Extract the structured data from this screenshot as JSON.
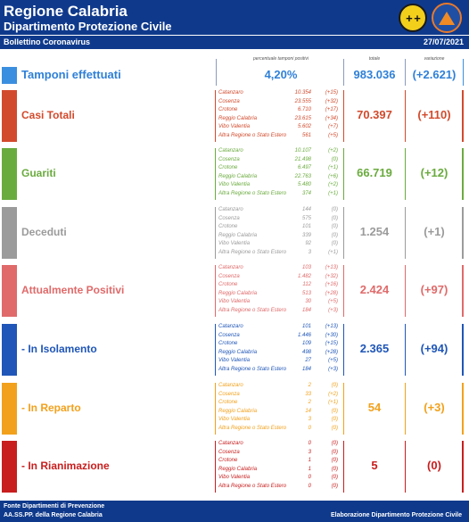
{
  "header": {
    "title": "Regione Calabria",
    "subtitle": "Dipartimento Protezione Civile",
    "logo1_text": "+ +"
  },
  "bulletin": {
    "label": "Bollettino Coronavirus",
    "date": "27/07/2021"
  },
  "columns": {
    "pct_label": "percentuale tamponi positivi",
    "total_label": "totale",
    "variation_label": "variazione"
  },
  "tamponi": {
    "label": "Tamponi effettuati",
    "pct": "4,20%",
    "total": "983.036",
    "variation": "(+2.621)",
    "color": "#2f80d8"
  },
  "sections": [
    {
      "label": "Casi Totali",
      "color": "#d24a2c",
      "total": "70.397",
      "variation": "(+110)",
      "provinces": [
        {
          "name": "Catanzaro",
          "value": "10.354",
          "delta": "(+15)"
        },
        {
          "name": "Cosenza",
          "value": "23.555",
          "delta": "(+32)"
        },
        {
          "name": "Crotone",
          "value": "6.710",
          "delta": "(+17)"
        },
        {
          "name": "Reggio Calabria",
          "value": "23.615",
          "delta": "(+34)"
        },
        {
          "name": "Vibo Valentia",
          "value": "5.602",
          "delta": "(+7)"
        },
        {
          "name": "Altra Regione o Stato Estero",
          "value": "561",
          "delta": "(+5)"
        }
      ]
    },
    {
      "label": "Guariti",
      "color": "#6aab3e",
      "total": "66.719",
      "variation": "(+12)",
      "provinces": [
        {
          "name": "Catanzaro",
          "value": "10.107",
          "delta": "(+2)"
        },
        {
          "name": "Cosenza",
          "value": "21.498",
          "delta": "(0)"
        },
        {
          "name": "Crotone",
          "value": "6.497",
          "delta": "(+1)"
        },
        {
          "name": "Reggio Calabria",
          "value": "22.763",
          "delta": "(+6)"
        },
        {
          "name": "Vibo Valentia",
          "value": "5.480",
          "delta": "(+2)"
        },
        {
          "name": "Altra Regione o Stato Estero",
          "value": "374",
          "delta": "(+1)"
        }
      ]
    },
    {
      "label": "Deceduti",
      "color": "#9b9b9b",
      "total": "1.254",
      "variation": "(+1)",
      "provinces": [
        {
          "name": "Catanzaro",
          "value": "144",
          "delta": "(0)"
        },
        {
          "name": "Cosenza",
          "value": "575",
          "delta": "(0)"
        },
        {
          "name": "Crotone",
          "value": "101",
          "delta": "(0)"
        },
        {
          "name": "Reggio Calabria",
          "value": "339",
          "delta": "(0)"
        },
        {
          "name": "Vibo Valentia",
          "value": "92",
          "delta": "(0)"
        },
        {
          "name": "Altra Regione o Stato Estero",
          "value": "3",
          "delta": "(+1)"
        }
      ]
    },
    {
      "label": "Attualmente Positivi",
      "color": "#e06a6a",
      "total": "2.424",
      "variation": "(+97)",
      "provinces": [
        {
          "name": "Catanzaro",
          "value": "103",
          "delta": "(+13)"
        },
        {
          "name": "Cosenza",
          "value": "1.482",
          "delta": "(+32)"
        },
        {
          "name": "Crotone",
          "value": "112",
          "delta": "(+16)"
        },
        {
          "name": "Reggio Calabria",
          "value": "513",
          "delta": "(+28)"
        },
        {
          "name": "Vibo Valentia",
          "value": "30",
          "delta": "(+5)"
        },
        {
          "name": "Altra Regione o Stato Estero",
          "value": "184",
          "delta": "(+3)"
        }
      ]
    },
    {
      "label": "- In Isolamento",
      "color": "#1f56b8",
      "total": "2.365",
      "variation": "(+94)",
      "provinces": [
        {
          "name": "Catanzaro",
          "value": "101",
          "delta": "(+13)"
        },
        {
          "name": "Cosenza",
          "value": "1.446",
          "delta": "(+30)"
        },
        {
          "name": "Crotone",
          "value": "109",
          "delta": "(+15)"
        },
        {
          "name": "Reggio Calabria",
          "value": "498",
          "delta": "(+28)"
        },
        {
          "name": "Vibo Valentia",
          "value": "27",
          "delta": "(+5)"
        },
        {
          "name": "Altra Regione o Stato Estero",
          "value": "184",
          "delta": "(+3)"
        }
      ]
    },
    {
      "label": "- In Reparto",
      "color": "#f2a11c",
      "total": "54",
      "variation": "(+3)",
      "provinces": [
        {
          "name": "Catanzaro",
          "value": "2",
          "delta": "(0)"
        },
        {
          "name": "Cosenza",
          "value": "33",
          "delta": "(+2)"
        },
        {
          "name": "Crotone",
          "value": "2",
          "delta": "(+1)"
        },
        {
          "name": "Reggio Calabria",
          "value": "14",
          "delta": "(0)"
        },
        {
          "name": "Vibo Valentia",
          "value": "3",
          "delta": "(0)"
        },
        {
          "name": "Altra Regione o Stato Estero",
          "value": "0",
          "delta": "(0)"
        }
      ]
    },
    {
      "label": "- In Rianimazione",
      "color": "#c81e1e",
      "total": "5",
      "variation": "(0)",
      "provinces": [
        {
          "name": "Catanzaro",
          "value": "0",
          "delta": "(0)"
        },
        {
          "name": "Cosenza",
          "value": "3",
          "delta": "(0)"
        },
        {
          "name": "Crotone",
          "value": "1",
          "delta": "(0)"
        },
        {
          "name": "Reggio Calabria",
          "value": "1",
          "delta": "(0)"
        },
        {
          "name": "Vibo Valentia",
          "value": "0",
          "delta": "(0)"
        },
        {
          "name": "Altra Regione o Stato Estero",
          "value": "0",
          "delta": "(0)"
        }
      ]
    }
  ],
  "footer": {
    "source_line1": "Fonte Dipartimenti di Prevenzione",
    "source_line2": "AA.SS.PP.  della Regione Calabria",
    "credit": "Elaborazione Dipartimento Protezione Civile"
  }
}
